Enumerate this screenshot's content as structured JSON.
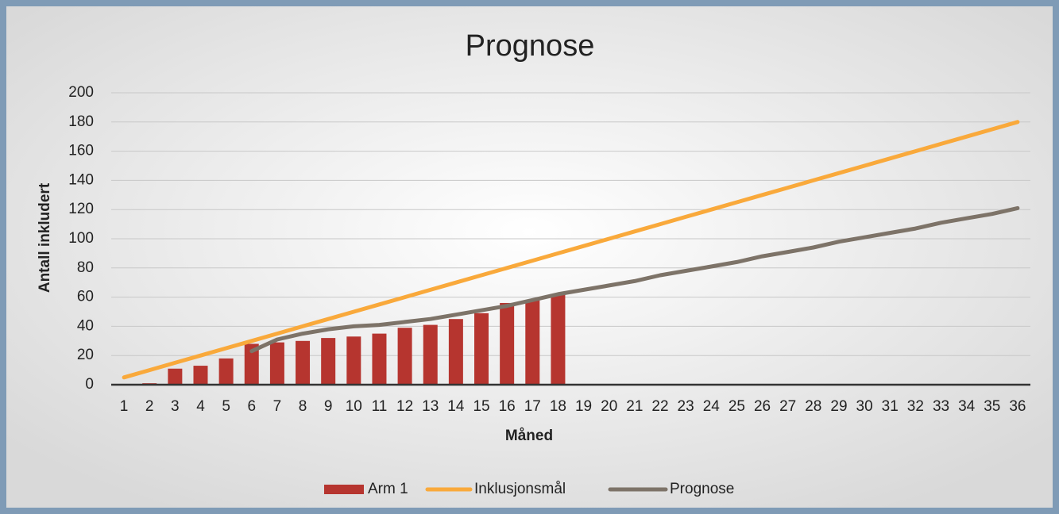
{
  "chart_data": {
    "type": "bar_line",
    "title": "Prognose",
    "x_label": "Måned",
    "y_label": "Antall inkludert",
    "categories": [
      1,
      2,
      3,
      4,
      5,
      6,
      7,
      8,
      9,
      10,
      11,
      12,
      13,
      14,
      15,
      16,
      17,
      18,
      19,
      20,
      21,
      22,
      23,
      24,
      25,
      26,
      27,
      28,
      29,
      30,
      31,
      32,
      33,
      34,
      35,
      36
    ],
    "series": [
      {
        "name": "Arm 1",
        "type": "bar",
        "color": "#b6352f",
        "values": [
          0,
          1,
          11,
          13,
          18,
          28,
          29,
          30,
          32,
          33,
          35,
          39,
          41,
          45,
          49,
          56,
          58,
          62,
          null,
          null,
          null,
          null,
          null,
          null,
          null,
          null,
          null,
          null,
          null,
          null,
          null,
          null,
          null,
          null,
          null,
          null
        ]
      },
      {
        "name": "Inklusjonsmål",
        "type": "line",
        "color": "#f9a93b",
        "values": [
          5,
          10,
          15,
          20,
          25,
          30,
          35,
          40,
          45,
          50,
          55,
          60,
          65,
          70,
          75,
          80,
          85,
          90,
          95,
          100,
          105,
          110,
          115,
          120,
          125,
          130,
          135,
          140,
          145,
          150,
          155,
          160,
          165,
          170,
          175,
          180
        ]
      },
      {
        "name": "Prognose",
        "type": "line",
        "color": "#7d7368",
        "values": [
          null,
          null,
          null,
          null,
          null,
          23,
          31,
          35,
          38,
          40,
          41,
          43,
          45,
          48,
          51,
          54,
          58,
          62,
          65,
          68,
          71,
          75,
          78,
          81,
          84,
          88,
          91,
          94,
          98,
          101,
          104,
          107,
          111,
          114,
          117,
          121
        ]
      }
    ],
    "ylim": [
      0,
      200
    ],
    "yticks": [
      0,
      20,
      40,
      60,
      80,
      100,
      120,
      140,
      160,
      180,
      200
    ],
    "grid": true,
    "legend": "bottom"
  }
}
